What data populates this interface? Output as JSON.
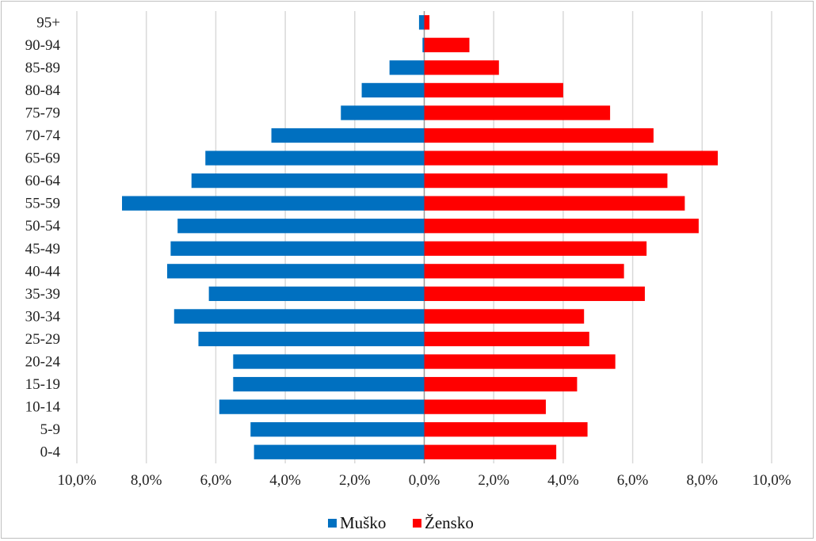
{
  "chart_data": {
    "type": "bar",
    "orientation": "horizontal",
    "title": "",
    "xlabel": "",
    "ylabel": "",
    "categories": [
      "0-4",
      "5-9",
      "10-14",
      "15-19",
      "20-24",
      "25-29",
      "30-34",
      "35-39",
      "40-44",
      "45-49",
      "50-54",
      "55-59",
      "60-64",
      "65-69",
      "70-74",
      "75-79",
      "80-84",
      "85-89",
      "90-94",
      "95+"
    ],
    "series": [
      {
        "name": "Muško",
        "color": "#0070C0",
        "values": [
          4.9,
          5.0,
          5.9,
          5.5,
          5.5,
          6.5,
          7.2,
          6.2,
          7.4,
          7.3,
          7.1,
          8.7,
          6.7,
          6.3,
          4.4,
          2.4,
          1.8,
          1.0,
          0.05,
          0.15
        ]
      },
      {
        "name": "Žensko",
        "color": "#FF0000",
        "values": [
          3.8,
          4.7,
          3.5,
          4.4,
          5.5,
          4.75,
          4.6,
          6.35,
          5.75,
          6.4,
          7.9,
          7.5,
          7.0,
          8.45,
          6.6,
          5.35,
          4.0,
          2.15,
          1.3,
          0.15
        ]
      }
    ],
    "xlim": [
      -10,
      10
    ],
    "xticks": [
      "10,0%",
      "8,0%",
      "6,0%",
      "4,0%",
      "2,0%",
      "0,0%",
      "2,0%",
      "4,0%",
      "6,0%",
      "8,0%",
      "10,0%"
    ],
    "legend_position": "bottom",
    "grid": true
  }
}
